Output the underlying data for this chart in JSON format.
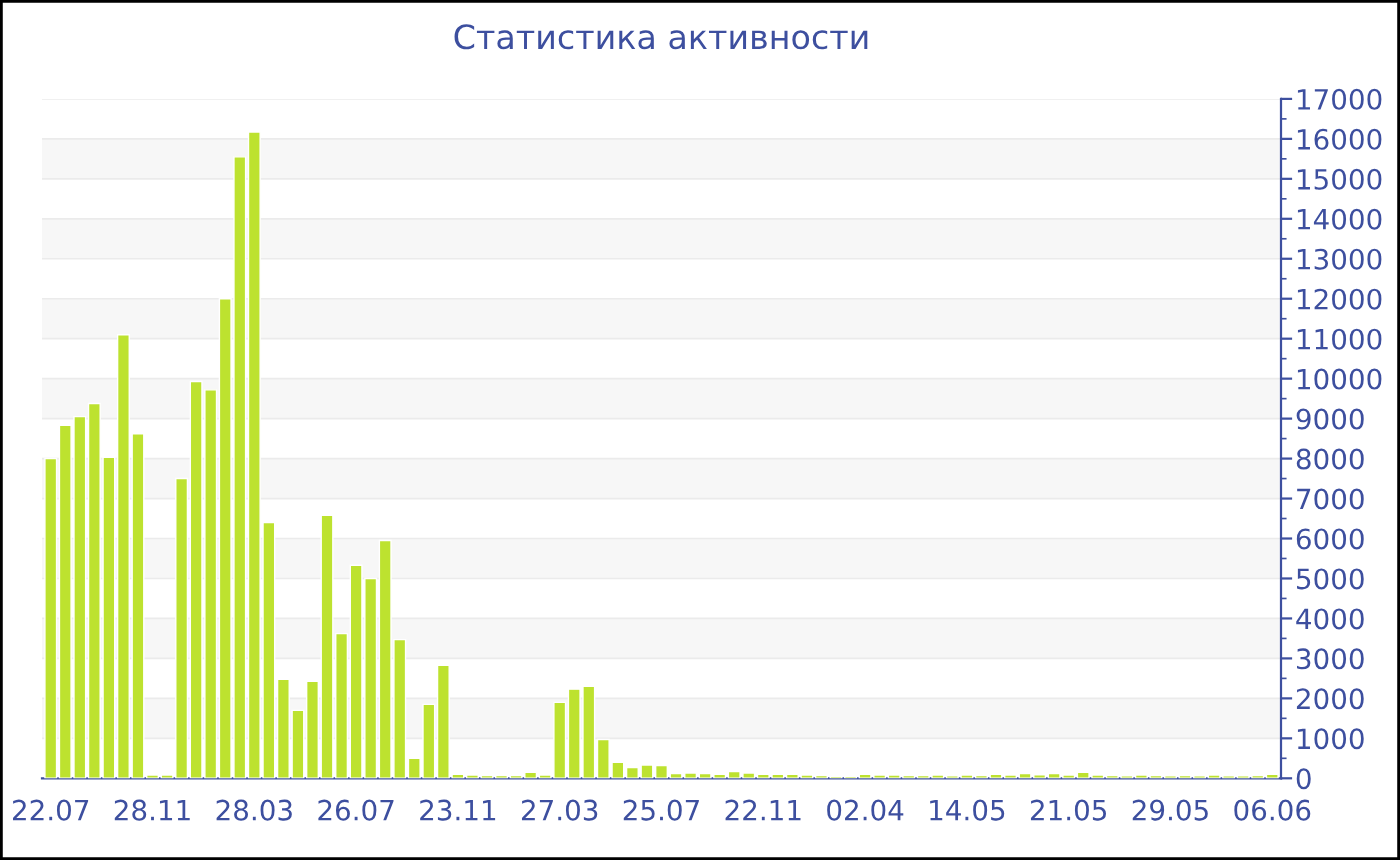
{
  "chart_data": {
    "type": "bar",
    "title": "Статистика активности",
    "categories": [
      "22.07",
      null,
      null,
      null,
      null,
      null,
      null,
      "28.11",
      null,
      null,
      null,
      null,
      null,
      null,
      "28.03",
      null,
      null,
      null,
      null,
      null,
      null,
      "26.07",
      null,
      null,
      null,
      null,
      null,
      null,
      "23.11",
      null,
      null,
      null,
      null,
      null,
      null,
      "27.03",
      null,
      null,
      null,
      null,
      null,
      null,
      "25.07",
      null,
      null,
      null,
      null,
      null,
      null,
      "22.11",
      null,
      null,
      null,
      null,
      null,
      null,
      "02.04",
      null,
      null,
      null,
      null,
      null,
      null,
      "14.05",
      null,
      null,
      null,
      null,
      null,
      null,
      "21.05",
      null,
      null,
      null,
      null,
      null,
      null,
      "29.05",
      null,
      null,
      null,
      null,
      null,
      null,
      "06.06"
    ],
    "values": [
      8000,
      8830,
      9050,
      9380,
      8030,
      11100,
      8620,
      80,
      80,
      7500,
      9930,
      9720,
      12000,
      15550,
      16170,
      6400,
      2480,
      1700,
      2430,
      6580,
      3620,
      5330,
      5000,
      5950,
      3470,
      500,
      1850,
      2830,
      100,
      80,
      70,
      70,
      70,
      150,
      80,
      1900,
      2230,
      2300,
      970,
      400,
      270,
      330,
      320,
      120,
      130,
      120,
      100,
      170,
      130,
      100,
      100,
      100,
      80,
      70,
      50,
      50,
      100,
      80,
      80,
      70,
      70,
      80,
      60,
      80,
      70,
      100,
      80,
      120,
      90,
      120,
      80,
      150,
      80,
      70,
      60,
      80,
      70,
      60,
      70,
      60,
      80,
      60,
      60,
      70,
      100
    ],
    "color": "#bde22f",
    "ylim": [
      0,
      17000
    ],
    "yticks": [
      0,
      1000,
      2000,
      3000,
      4000,
      5000,
      6000,
      7000,
      8000,
      9000,
      10000,
      11000,
      12000,
      13000,
      14000,
      15000,
      16000,
      17000
    ],
    "grid": "y"
  }
}
